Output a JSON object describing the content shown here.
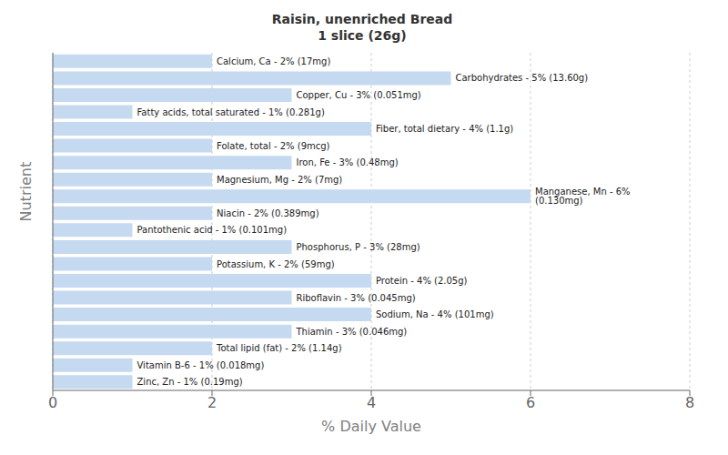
{
  "chart_data": {
    "type": "bar",
    "orientation": "horizontal",
    "title": "Raisin, unenriched Bread\n1 slice (26g)",
    "xlabel": "% Daily Value",
    "ylabel": "Nutrient",
    "categories": [
      "Calcium, Ca - 2% (17mg)",
      "Carbohydrates - 5% (13.60g)",
      "Copper, Cu - 3% (0.051mg)",
      "Fatty acids, total saturated - 1% (0.281g)",
      "Fiber, total dietary - 4% (1.1g)",
      "Folate, total - 2% (9mcg)",
      "Iron, Fe - 3% (0.48mg)",
      "Magnesium, Mg - 2% (7mg)",
      "Manganese, Mn - 6% (0.130mg)",
      "Niacin - 2% (0.389mg)",
      "Pantothenic acid - 1% (0.101mg)",
      "Phosphorus, P - 3% (28mg)",
      "Potassium, K - 2% (59mg)",
      "Protein - 4% (2.05g)",
      "Riboflavin - 3% (0.045mg)",
      "Sodium, Na - 4% (101mg)",
      "Thiamin - 3% (0.046mg)",
      "Total lipid (fat) - 2% (1.14g)",
      "Vitamin B-6 - 1% (0.018mg)",
      "Zinc, Zn - 1% (0.19mg)"
    ],
    "values": [
      2,
      5,
      3,
      1,
      4,
      2,
      3,
      2,
      6,
      2,
      1,
      3,
      2,
      4,
      3,
      4,
      3,
      2,
      1,
      1
    ],
    "color": "#c5d9f1",
    "xlim": [
      0,
      8
    ],
    "xticks": [
      0,
      2,
      4,
      6,
      8
    ],
    "grid": true,
    "tick_labels": "x"
  }
}
